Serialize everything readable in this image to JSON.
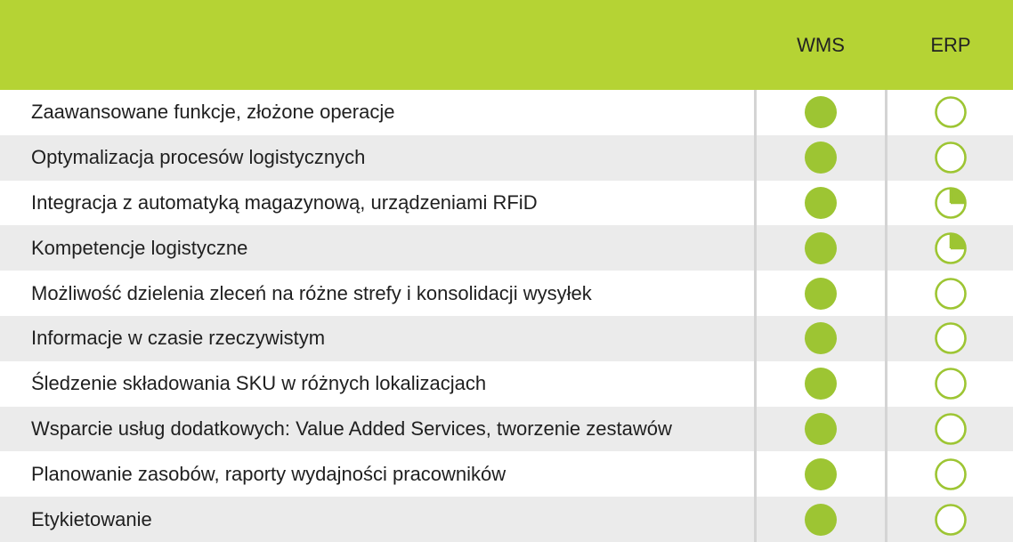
{
  "header": {
    "columns": [
      "WMS",
      "ERP"
    ]
  },
  "colors": {
    "accent": "#b5d334",
    "icon_fill": "#9dc533",
    "icon_stroke": "#9dc533",
    "row_alt": "#ebebeb"
  },
  "rows": [
    {
      "label": "Zaawansowane funkcje, złożone operacje",
      "wms": "full",
      "erp": "empty"
    },
    {
      "label": "Optymalizacja procesów logistycznych",
      "wms": "full",
      "erp": "empty"
    },
    {
      "label": "Integracja z automatyką magazynową, urządzeniami RFiD",
      "wms": "full",
      "erp": "quarter"
    },
    {
      "label": "Kompetencje logistyczne",
      "wms": "full",
      "erp": "quarter"
    },
    {
      "label": "Możliwość dzielenia zleceń na różne strefy i konsolidacji wysyłek",
      "wms": "full",
      "erp": "empty"
    },
    {
      "label": "Informacje w czasie rzeczywistym",
      "wms": "full",
      "erp": "empty"
    },
    {
      "label": "Śledzenie składowania SKU w różnych lokalizacjach",
      "wms": "full",
      "erp": "empty"
    },
    {
      "label": "Wsparcie usług dodatkowych: Value Added Services, tworzenie zestawów",
      "wms": "full",
      "erp": "empty"
    },
    {
      "label": "Planowanie zasobów, raporty wydajności pracowników",
      "wms": "full",
      "erp": "empty"
    },
    {
      "label": "Etykietowanie",
      "wms": "full",
      "erp": "empty"
    }
  ]
}
